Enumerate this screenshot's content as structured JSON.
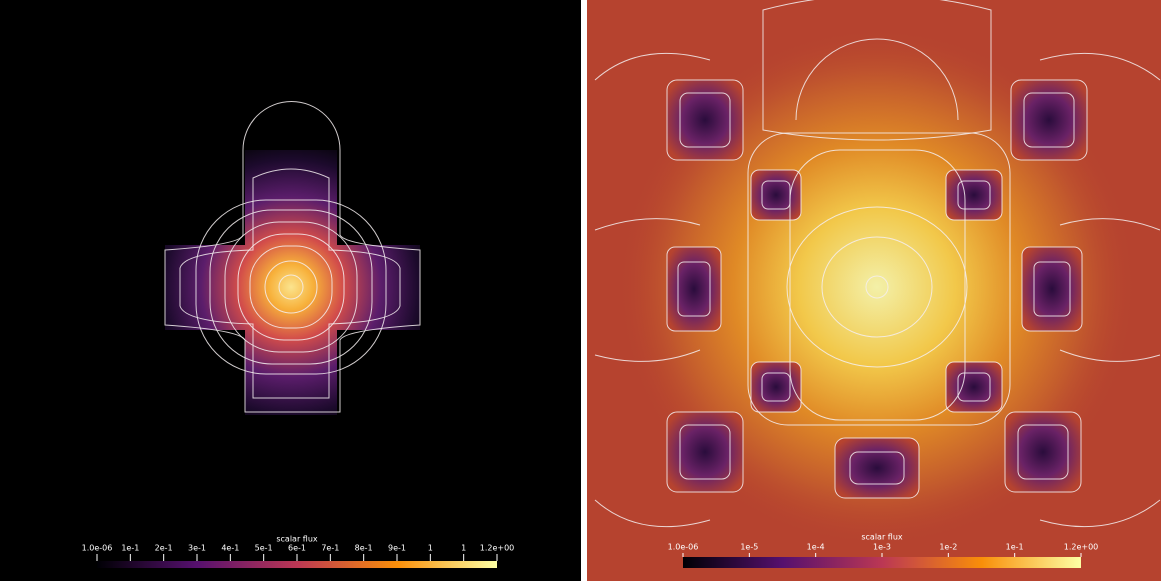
{
  "panels": [
    {
      "colorbar": {
        "title": "scalar flux",
        "tick_labels": [
          "1.0e-06",
          "1e-1",
          "2e-1",
          "3e-1",
          "4e-1",
          "5e-1",
          "6e-1",
          "7e-1",
          "8e-1",
          "9e-1",
          "1",
          "1",
          "1.2e+00"
        ]
      }
    },
    {
      "colorbar": {
        "title": "scalar flux",
        "tick_labels": [
          "1.0e-06",
          "1e-5",
          "1e-4",
          "1e-3",
          "1e-2",
          "1e-1",
          "1.2e+00"
        ]
      }
    }
  ]
}
